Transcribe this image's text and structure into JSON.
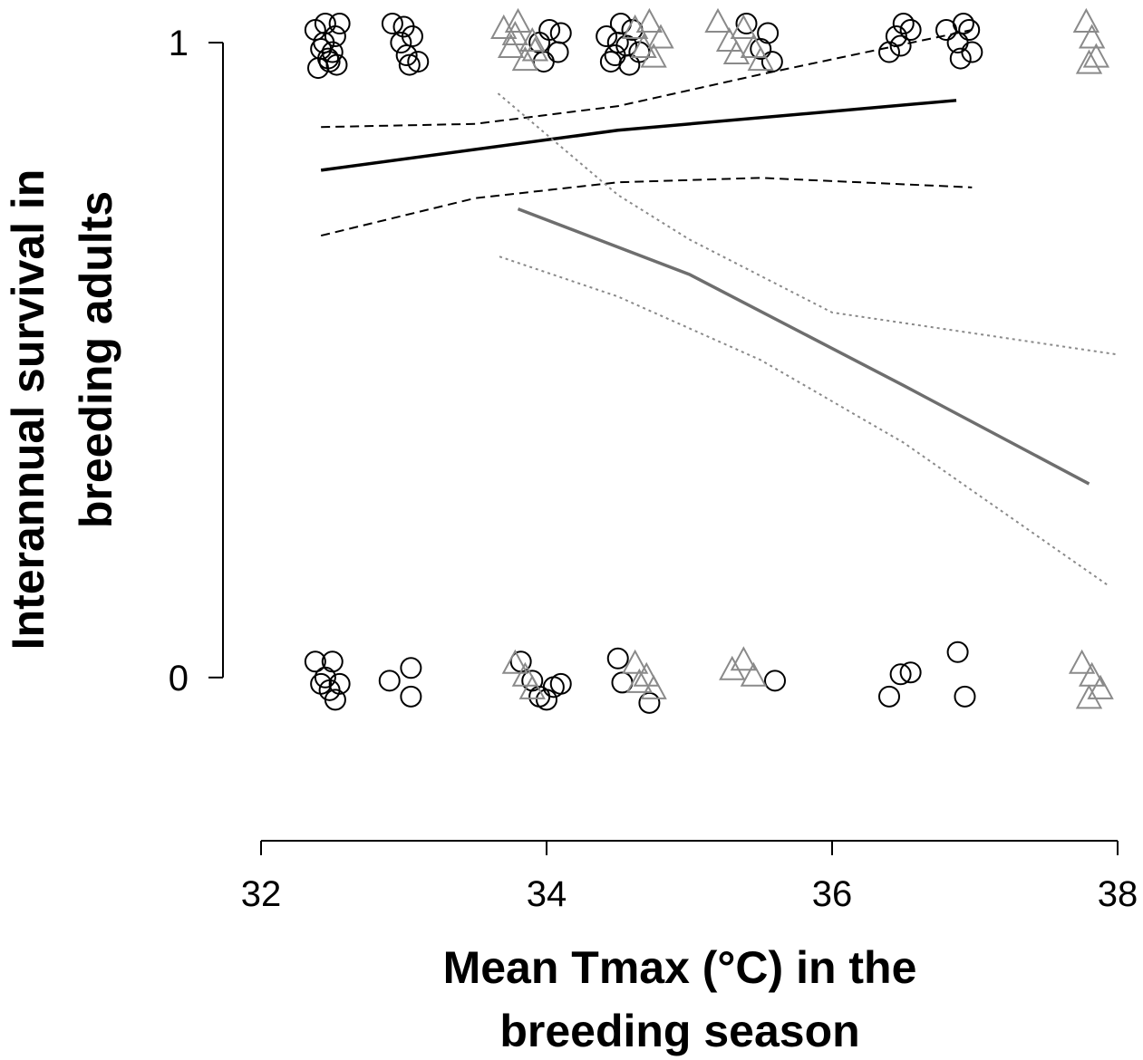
{
  "chart_data": {
    "type": "scatter",
    "ylabel": [
      "Interannual survival in",
      "breeding adults"
    ],
    "xlabel": [
      "Mean Tmax (°C) in the",
      "breeding season"
    ],
    "xlim": [
      32,
      38
    ],
    "xticks": [
      32,
      34,
      36,
      38
    ],
    "ylim": [
      -0.25,
      1.06
    ],
    "yticks": [
      0,
      1
    ],
    "series": [
      {
        "marker": "circle",
        "color": "#000000",
        "x": [
          32.38,
          32.42,
          32.45,
          32.48,
          32.52,
          32.4,
          32.5,
          32.55,
          32.44,
          32.47,
          32.53,
          32.92,
          32.98,
          33.02,
          33.06,
          33.1,
          33.0,
          33.04,
          33.95,
          34.02,
          34.08,
          34.1,
          33.98,
          34.42,
          34.48,
          34.52,
          34.56,
          34.6,
          34.45,
          34.65,
          34.58,
          34.5,
          35.4,
          35.5,
          35.55,
          35.58,
          36.4,
          36.45,
          36.5,
          36.55,
          36.48,
          36.8,
          36.88,
          36.92,
          36.96,
          36.9,
          36.98,
          32.38,
          32.45,
          32.5,
          32.42,
          32.48,
          32.52,
          32.55,
          32.9,
          33.05,
          33.05,
          33.82,
          33.9,
          33.95,
          34.0,
          34.05,
          34.1,
          34.5,
          34.53,
          34.72,
          35.6,
          36.4,
          36.48,
          36.55,
          36.88,
          36.93
        ],
        "values": [
          1.02,
          0.99,
          1.03,
          0.97,
          1.01,
          0.96,
          0.985,
          1.03,
          1.0,
          0.975,
          0.965,
          1.03,
          1.0,
          0.98,
          1.01,
          0.97,
          1.025,
          0.965,
          1.0,
          1.02,
          0.985,
          1.015,
          0.97,
          1.01,
          0.98,
          1.03,
          0.995,
          1.02,
          0.97,
          0.985,
          0.965,
          1.0,
          1.03,
          0.99,
          1.015,
          0.97,
          0.985,
          1.01,
          1.03,
          1.02,
          0.995,
          1.02,
          1.0,
          1.03,
          1.02,
          0.975,
          0.985,
          0.025,
          0.0,
          0.025,
          -0.01,
          -0.02,
          -0.035,
          -0.01,
          -0.005,
          0.015,
          -0.03,
          0.025,
          -0.005,
          -0.03,
          -0.035,
          -0.015,
          -0.01,
          0.03,
          -0.008,
          -0.04,
          -0.005,
          -0.03,
          0.005,
          0.008,
          0.04,
          -0.03
        ]
      },
      {
        "marker": "triangle",
        "color": "#8a8a8a",
        "x": [
          33.7,
          33.75,
          33.8,
          33.85,
          33.9,
          33.78,
          33.92,
          34.62,
          34.68,
          34.72,
          34.75,
          34.8,
          35.2,
          35.28,
          35.33,
          35.38,
          35.45,
          35.5,
          37.78,
          37.82,
          37.85,
          37.8,
          33.78,
          33.85,
          33.9,
          34.62,
          34.7,
          34.75,
          34.65,
          35.3,
          35.38,
          35.45,
          37.75,
          37.82,
          37.88,
          37.8
        ],
        "values": [
          1.02,
          0.99,
          1.03,
          0.97,
          1.0,
          1.01,
          0.985,
          1.02,
          0.99,
          1.03,
          0.975,
          1.005,
          1.03,
          1.0,
          0.98,
          1.02,
          0.99,
          0.97,
          1.03,
          1.005,
          0.975,
          0.965,
          0.02,
          0.0,
          -0.02,
          0.02,
          0.0,
          -0.02,
          -0.01,
          0.01,
          0.025,
          0.0,
          0.02,
          0.0,
          -0.02,
          -0.035
        ]
      },
      {
        "line": "solid",
        "color": "#000000",
        "x": [
          32.42,
          34.5,
          36.87
        ],
        "values": [
          0.799,
          0.862,
          0.909
        ]
      },
      {
        "line": "dashed",
        "color": "#000000",
        "x": [
          32.42,
          33.5,
          34.5,
          35.5,
          36.98
        ],
        "values": [
          0.867,
          0.872,
          0.9,
          0.95,
          1.02
        ]
      },
      {
        "line": "dashed",
        "color": "#000000",
        "x": [
          32.42,
          33.5,
          34.5,
          35.5,
          36.98
        ],
        "values": [
          0.696,
          0.755,
          0.78,
          0.787,
          0.772
        ]
      },
      {
        "line": "solid",
        "color": "#6e6e6e",
        "x": [
          33.8,
          35,
          36.5,
          37.8
        ],
        "values": [
          0.738,
          0.635,
          0.46,
          0.305
        ]
      },
      {
        "line": "dotted",
        "color": "#8a8a8a",
        "x": [
          33.66,
          34.5,
          35,
          36,
          37.99
        ],
        "values": [
          0.92,
          0.76,
          0.69,
          0.575,
          0.509
        ]
      },
      {
        "line": "dotted",
        "color": "#8a8a8a",
        "x": [
          33.67,
          34.5,
          35.5,
          36.5,
          37.94
        ],
        "values": [
          0.663,
          0.6,
          0.5,
          0.37,
          0.144
        ]
      }
    ]
  }
}
